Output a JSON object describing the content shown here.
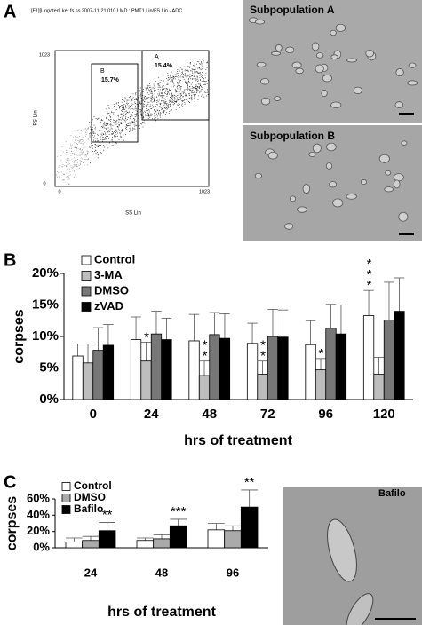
{
  "panel_labels": [
    "A",
    "B",
    "C"
  ],
  "flow_plot": {
    "header": "[F1][Ungated] ker fs.ss     2007-11-21 010.LMD : PMT1 Lin/FS Lin - ADC",
    "y_axis_label": "FS Lin",
    "x_axis_label": "SS Lin",
    "y_ticks": [
      "1023",
      "0"
    ],
    "x_ticks": [
      "0",
      "1023"
    ],
    "gates": [
      {
        "name": "A",
        "percent": "15.4%"
      },
      {
        "name": "B",
        "percent": "15.7%"
      }
    ]
  },
  "images": [
    {
      "label": "Subpopulation A"
    },
    {
      "label": "Subpopulation B"
    },
    {
      "label": "Bafilo"
    }
  ],
  "chart_data": [
    {
      "type": "bar",
      "x_axis_label": "hrs of treatment",
      "y_axis_label": "corpses",
      "legend": "upper left",
      "categories": [
        "0",
        "24",
        "48",
        "72",
        "96",
        "120"
      ],
      "ylim": [
        0,
        20
      ],
      "yticks": [
        {
          "value": 0,
          "label": "0%"
        },
        {
          "value": 5,
          "label": "5%"
        },
        {
          "value": 10,
          "label": "10%"
        },
        {
          "value": 15,
          "label": "15%"
        },
        {
          "value": 20,
          "label": "20%"
        }
      ],
      "series": [
        {
          "name": "Control",
          "color": "#ffffff",
          "values": [
            6.9,
            9.5,
            9.3,
            8.9,
            8.7,
            13.3
          ],
          "errors": [
            1.9,
            3.6,
            4.2,
            3.2,
            3.8,
            4.0
          ],
          "annotations": [
            null,
            null,
            null,
            null,
            null,
            "***"
          ]
        },
        {
          "name": "3-MA",
          "color": "#bdbdbd",
          "values": [
            5.8,
            6.1,
            3.8,
            4.0,
            4.7,
            4.0
          ],
          "errors": [
            3.0,
            3.0,
            2.3,
            2.1,
            1.8,
            2.7
          ],
          "annotations": [
            null,
            "*",
            "**",
            "**",
            "*",
            null
          ]
        },
        {
          "name": "DMSO",
          "color": "#777777",
          "values": [
            7.8,
            10.4,
            10.3,
            10.0,
            11.3,
            12.6
          ],
          "errors": [
            3.6,
            3.6,
            3.5,
            4.3,
            3.8,
            6.0
          ],
          "annotations": [
            null,
            null,
            null,
            null,
            null,
            null
          ]
        },
        {
          "name": "zVAD",
          "color": "#000000",
          "values": [
            8.6,
            9.5,
            9.7,
            9.9,
            10.4,
            14.0
          ],
          "errors": [
            3.3,
            3.4,
            3.9,
            4.3,
            4.6,
            5.3
          ],
          "annotations": [
            null,
            null,
            null,
            null,
            null,
            null
          ]
        }
      ]
    },
    {
      "type": "bar",
      "x_axis_label": "hrs of treatment",
      "y_axis_label": "corpses",
      "legend": "upper left",
      "categories": [
        "24",
        "48",
        "96"
      ],
      "ylim": [
        0,
        60
      ],
      "yticks": [
        {
          "value": 0,
          "label": "0%"
        },
        {
          "value": 20,
          "label": "20%"
        },
        {
          "value": 40,
          "label": "40%"
        },
        {
          "value": 60,
          "label": "60%"
        }
      ],
      "series": [
        {
          "name": "Control",
          "color": "#ffffff",
          "values": [
            7,
            9,
            22
          ],
          "errors": [
            5,
            3,
            8
          ],
          "annotations": [
            null,
            null,
            null
          ]
        },
        {
          "name": "DMSO",
          "color": "#aaaaaa",
          "values": [
            9,
            11,
            21
          ],
          "errors": [
            5,
            5,
            6
          ],
          "annotations": [
            null,
            null,
            null
          ]
        },
        {
          "name": "Bafilo",
          "color": "#000000",
          "values": [
            21,
            27,
            50
          ],
          "errors": [
            10,
            8,
            21
          ],
          "annotations": [
            "**",
            "***",
            "**"
          ]
        }
      ]
    }
  ]
}
